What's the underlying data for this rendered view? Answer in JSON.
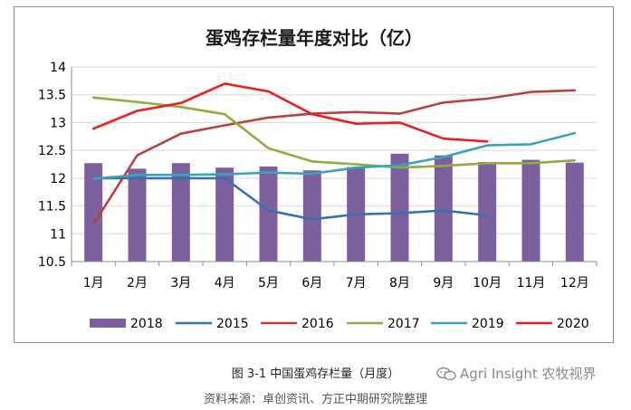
{
  "chart_data": {
    "type": "bar+line",
    "title": "蛋鸡存栏量年度对比（亿）",
    "categories": [
      "1月",
      "2月",
      "3月",
      "4月",
      "5月",
      "6月",
      "7月",
      "8月",
      "9月",
      "10月",
      "11月",
      "12月"
    ],
    "ylim": [
      10.5,
      14
    ],
    "yticks": [
      "14",
      "13.5",
      "13",
      "12.5",
      "12",
      "11.5",
      "11",
      "10.5"
    ],
    "ytick_values": [
      14,
      13.5,
      13,
      12.5,
      12,
      11.5,
      11,
      10.5
    ],
    "series": [
      {
        "name": "2018",
        "kind": "bar",
        "color": "#7d5fa0",
        "values": [
          12.27,
          12.17,
          12.27,
          12.19,
          12.21,
          12.14,
          12.2,
          12.44,
          12.41,
          12.29,
          12.33,
          12.28
        ]
      },
      {
        "name": "2015",
        "kind": "line",
        "color": "#3a6fb0",
        "values": [
          12.0,
          12.0,
          12.0,
          12.0,
          11.42,
          11.26,
          11.35,
          11.37,
          11.42,
          11.33,
          null,
          null
        ]
      },
      {
        "name": "2016",
        "kind": "line",
        "color": "#b5443f",
        "values": [
          11.17,
          12.41,
          12.8,
          12.95,
          13.09,
          13.16,
          13.19,
          13.16,
          13.36,
          13.43,
          13.55,
          13.58
        ]
      },
      {
        "name": "2017",
        "kind": "line",
        "color": "#8fae3e",
        "values": [
          13.45,
          13.37,
          13.28,
          13.15,
          12.54,
          12.3,
          12.25,
          12.19,
          12.22,
          12.27,
          12.27,
          12.32
        ]
      },
      {
        "name": "2019",
        "kind": "line",
        "color": "#3aa3b8",
        "values": [
          11.99,
          12.06,
          12.06,
          12.07,
          12.1,
          12.08,
          12.19,
          12.23,
          12.38,
          12.59,
          12.61,
          12.81
        ]
      },
      {
        "name": "2020",
        "kind": "line",
        "color": "#ee1c1c",
        "values": [
          12.89,
          13.21,
          13.35,
          13.7,
          13.56,
          13.15,
          12.98,
          13.0,
          12.71,
          12.66,
          null,
          null
        ]
      }
    ]
  },
  "caption": "图 3-1 中国蛋鸡存栏量（月度）",
  "watermark": "Agri Insight 农牧视界",
  "source": "资料来源：卓创资讯、方正中期研究院整理"
}
